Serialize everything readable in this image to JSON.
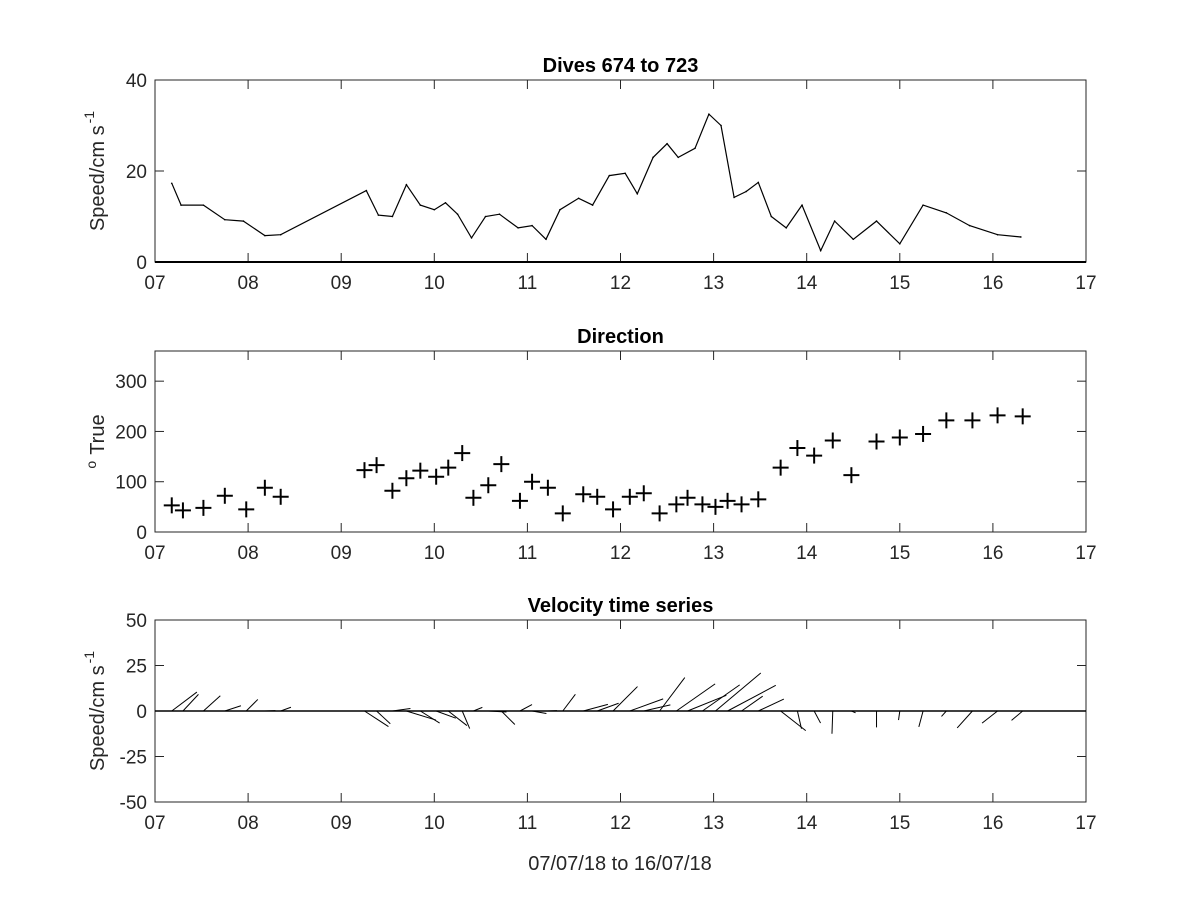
{
  "x_caption": "07/07/18 to 16/07/18",
  "chart_data": [
    {
      "type": "line",
      "title": "Dives 674 to 723",
      "ylabel": "Speed/cm s",
      "ylabel_exponent": "-1",
      "xlim": [
        7,
        17
      ],
      "ylim": [
        0,
        40
      ],
      "xticks": [
        "07",
        "08",
        "09",
        "10",
        "11",
        "12",
        "13",
        "14",
        "15",
        "16",
        "17"
      ],
      "yticks": [
        "0",
        "20",
        "40"
      ],
      "grid": false,
      "x": [
        7.18,
        7.28,
        7.52,
        7.75,
        7.95,
        8.18,
        8.35,
        9.27,
        9.4,
        9.55,
        9.7,
        9.85,
        10.0,
        10.12,
        10.25,
        10.4,
        10.55,
        10.7,
        10.9,
        11.05,
        11.2,
        11.35,
        11.55,
        11.7,
        11.88,
        12.05,
        12.18,
        12.35,
        12.5,
        12.62,
        12.8,
        12.95,
        13.08,
        13.22,
        13.35,
        13.48,
        13.62,
        13.78,
        13.95,
        14.15,
        14.3,
        14.5,
        14.75,
        15.0,
        15.25,
        15.5,
        15.75,
        16.05,
        16.3
      ],
      "y": [
        17.3,
        12.5,
        12.5,
        9.3,
        9.0,
        5.8,
        6.0,
        15.7,
        10.3,
        10.0,
        17.0,
        12.5,
        11.5,
        13.0,
        10.5,
        5.3,
        10.0,
        10.5,
        7.5,
        8.0,
        5.0,
        11.5,
        14.0,
        12.5,
        19.0,
        19.5,
        15.0,
        23.0,
        26.0,
        23.0,
        25.0,
        32.5,
        30.0,
        14.2,
        15.5,
        17.5,
        10.0,
        7.5,
        12.5,
        2.5,
        9.0,
        5.0,
        9.0,
        4.0,
        12.5,
        10.8,
        8.0,
        6.0,
        5.5
      ]
    },
    {
      "type": "scatter",
      "title": "Direction",
      "ylabel": "True",
      "ylabel_prefix": "o",
      "xlim": [
        7,
        17
      ],
      "ylim": [
        0,
        360
      ],
      "xticks": [
        "07",
        "08",
        "09",
        "10",
        "11",
        "12",
        "13",
        "14",
        "15",
        "16",
        "17"
      ],
      "yticks": [
        "0",
        "100",
        "200",
        "300"
      ],
      "grid": false,
      "marker": "+",
      "x": [
        7.18,
        7.3,
        7.52,
        7.75,
        7.98,
        8.18,
        8.35,
        9.25,
        9.38,
        9.55,
        9.7,
        9.85,
        10.02,
        10.15,
        10.3,
        10.42,
        10.58,
        10.72,
        10.92,
        11.05,
        11.22,
        11.38,
        11.6,
        11.75,
        11.92,
        12.1,
        12.25,
        12.42,
        12.6,
        12.72,
        12.88,
        13.02,
        13.15,
        13.3,
        13.48,
        13.72,
        13.9,
        14.08,
        14.28,
        14.48,
        14.75,
        15.0,
        15.25,
        15.5,
        15.78,
        16.05,
        16.32
      ],
      "y": [
        53,
        43,
        48,
        72,
        45,
        88,
        70,
        123,
        133,
        82,
        107,
        122,
        110,
        128,
        157,
        68,
        93,
        135,
        62,
        100,
        88,
        37,
        75,
        70,
        45,
        70,
        77,
        37,
        55,
        68,
        55,
        50,
        62,
        55,
        65,
        128,
        167,
        152,
        182,
        113,
        180,
        188,
        195,
        222,
        222,
        232,
        230
      ]
    },
    {
      "type": "quiver",
      "title": "Velocity time series",
      "ylabel": "Speed/cm s",
      "ylabel_exponent": "-1",
      "xlim": [
        7,
        17
      ],
      "ylim": [
        -50,
        50
      ],
      "xticks": [
        "07",
        "08",
        "09",
        "10",
        "11",
        "12",
        "13",
        "14",
        "15",
        "16",
        "17"
      ],
      "yticks": [
        "-50",
        "-25",
        "0",
        "25",
        "50"
      ],
      "grid": false,
      "x": [
        7.18,
        7.3,
        7.52,
        7.75,
        7.98,
        8.18,
        8.35,
        9.25,
        9.38,
        9.55,
        9.7,
        9.85,
        10.02,
        10.15,
        10.3,
        10.42,
        10.58,
        10.72,
        10.92,
        11.05,
        11.22,
        11.38,
        11.6,
        11.75,
        11.92,
        12.1,
        12.25,
        12.42,
        12.6,
        12.72,
        12.88,
        13.02,
        13.15,
        13.3,
        13.48,
        13.72,
        13.9,
        14.08,
        14.28,
        14.48,
        14.75,
        15.0,
        15.25,
        15.5,
        15.78,
        16.05,
        16.32
      ],
      "speed": [
        17.3,
        12.5,
        12.5,
        9.3,
        9.0,
        5.8,
        6.0,
        15.7,
        10.3,
        10.0,
        17.0,
        12.5,
        11.5,
        13.0,
        10.5,
        5.3,
        10.0,
        10.5,
        7.5,
        8.0,
        5.0,
        11.5,
        14.0,
        12.5,
        19.0,
        19.5,
        15.0,
        23.0,
        26.0,
        23.0,
        25.0,
        32.5,
        30.0,
        14.2,
        15.5,
        17.5,
        10.0,
        7.5,
        12.5,
        2.5,
        9.0,
        5.0,
        9.0,
        4.0,
        12.5,
        10.8,
        8.0
      ],
      "direction_deg_true": [
        53,
        43,
        48,
        72,
        45,
        88,
        70,
        123,
        133,
        82,
        107,
        122,
        110,
        128,
        157,
        68,
        93,
        135,
        62,
        100,
        88,
        37,
        75,
        70,
        45,
        70,
        77,
        37,
        55,
        68,
        55,
        50,
        62,
        55,
        65,
        128,
        167,
        152,
        182,
        113,
        180,
        188,
        195,
        222,
        222,
        232,
        230
      ]
    }
  ]
}
